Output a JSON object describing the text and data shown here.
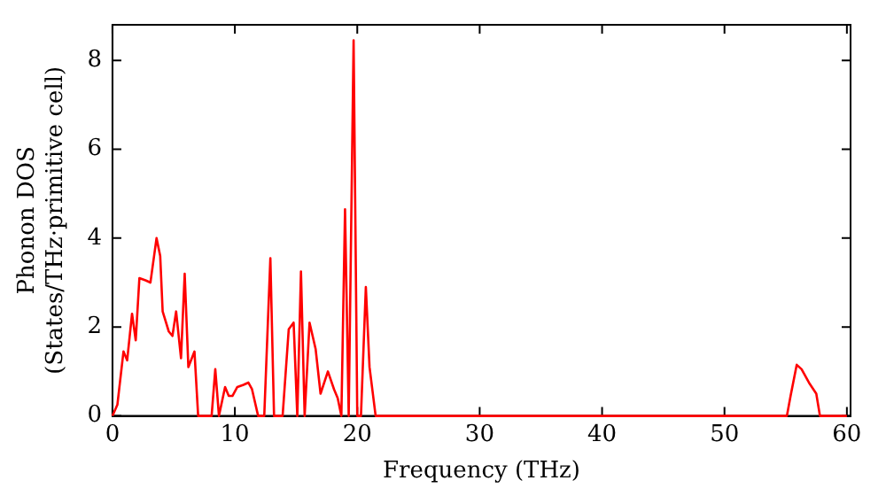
{
  "chart_data": {
    "type": "line",
    "xlabel": "Frequency (THz)",
    "ylabel": "Phonon DOS\n(States/THz·primitive cell)",
    "x": [
      0,
      0.4,
      0.9,
      1.2,
      1.6,
      1.9,
      2.2,
      2.7,
      3.1,
      3.6,
      3.9,
      4.1,
      4.6,
      4.9,
      5.2,
      5.6,
      5.9,
      6.2,
      6.7,
      7.0,
      8.1,
      8.4,
      8.7,
      9.2,
      9.5,
      9.8,
      10.2,
      10.7,
      11.1,
      11.4,
      11.9,
      12.4,
      12.9,
      13.2,
      13.9,
      14.4,
      14.8,
      15.1,
      15.4,
      15.7,
      16.1,
      16.6,
      17.0,
      17.6,
      18.1,
      18.4,
      18.7,
      19.0,
      19.3,
      19.7,
      20.0,
      20.3,
      20.7,
      21.0,
      21.5,
      55.1,
      55.4,
      55.9,
      56.3,
      56.9,
      57.5,
      57.8,
      60.0
    ],
    "series": [
      {
        "color": "#ff0000",
        "values": [
          0,
          0.25,
          1.45,
          1.25,
          2.3,
          1.7,
          3.1,
          3.05,
          3.0,
          4.0,
          3.6,
          2.35,
          1.9,
          1.8,
          2.35,
          1.3,
          3.2,
          1.1,
          1.45,
          0,
          0,
          1.05,
          0,
          0.65,
          0.45,
          0.45,
          0.65,
          0.7,
          0.75,
          0.6,
          0,
          0,
          3.55,
          0,
          0,
          1.95,
          2.1,
          0,
          3.25,
          0,
          2.1,
          1.5,
          0.5,
          1.0,
          0.6,
          0.4,
          0,
          4.65,
          0,
          8.45,
          0,
          0,
          2.9,
          1.1,
          0,
          0,
          0.45,
          1.15,
          1.05,
          0.75,
          0.5,
          0,
          0
        ]
      }
    ],
    "xlim": [
      0,
      60.3
    ],
    "ylim": [
      0,
      8.8
    ],
    "xticks": [
      0,
      10,
      20,
      30,
      40,
      50,
      60
    ],
    "yticks": [
      0,
      2,
      4,
      6,
      8
    ],
    "grid": false,
    "legend": false,
    "marker": "none",
    "line_style": "solid"
  }
}
